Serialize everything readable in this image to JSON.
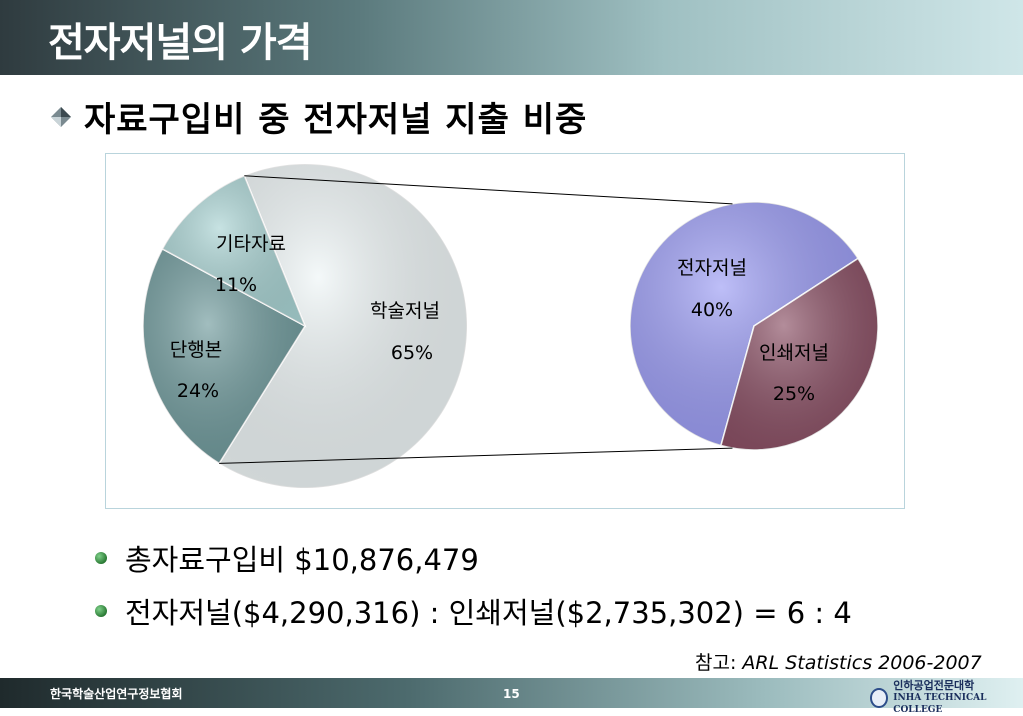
{
  "slide": {
    "title": "전자저널의 가격",
    "heading": "자료구입비 중 전자저널 지출 비중",
    "bullets": [
      "총자료구입비 $10,876,479",
      "전자저널($4,290,316) : 인쇄저널($2,735,302) = 6 : 4"
    ],
    "reference_label": "참고:",
    "reference_source": "ARL Statistics 2006-2007",
    "footer_org": "한국학술산업연구정보협회",
    "page_number": "15",
    "logo_korean": "인하공업전문대학",
    "logo_english": "INHA TECHNICAL COLLEGE"
  },
  "chart_data": [
    {
      "type": "pie",
      "labels": [
        "학술저널",
        "단행본",
        "기타자료"
      ],
      "values": [
        65,
        24,
        11
      ],
      "value_labels": [
        "65%",
        "24%",
        "11%"
      ],
      "colors": [
        "#eef5f6",
        "#6f9a9c",
        "#a9d3d3"
      ]
    },
    {
      "type": "pie",
      "labels": [
        "전자저널",
        "인쇄저널"
      ],
      "values": [
        40,
        25
      ],
      "value_labels": [
        "40%",
        "25%"
      ],
      "colors": [
        "#9b9cf4",
        "#8a4f64"
      ]
    }
  ]
}
